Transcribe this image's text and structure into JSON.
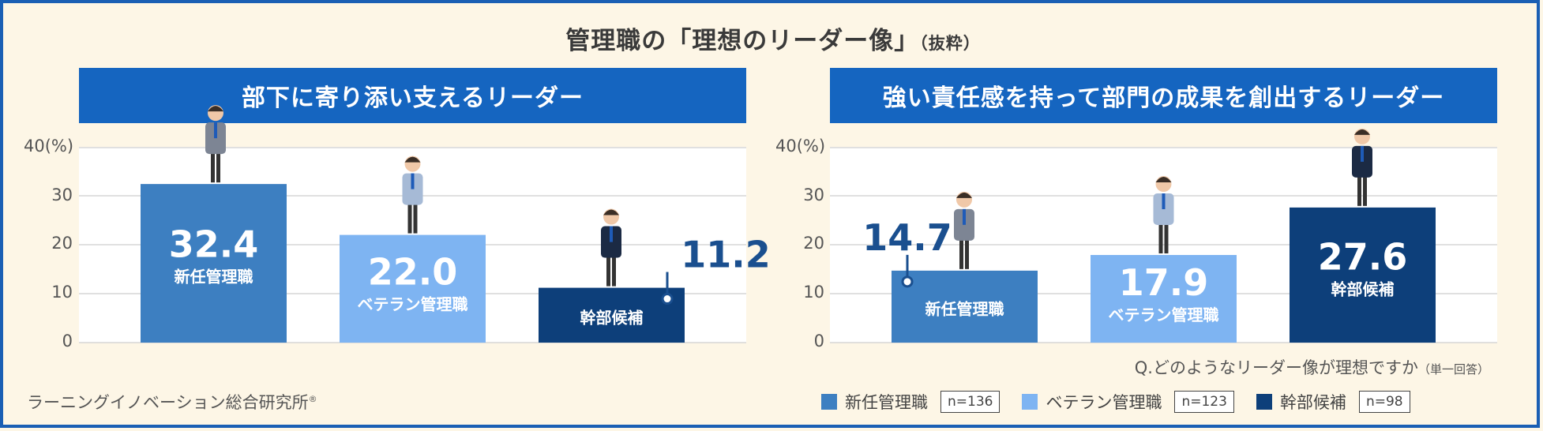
{
  "title": "管理職の「理想のリーダー像」",
  "title_suffix": "（抜粋）",
  "source": "ラーニングイノベーション総合研究所",
  "source_mark": "®",
  "question": "Q.どのようなリーダー像が理想ですか",
  "question_note": "（単一回答）",
  "y_unit": "40(%)",
  "y_ticks": [
    "30",
    "20",
    "10",
    "0"
  ],
  "legend": [
    {
      "label": "新任管理職",
      "n": "n=136",
      "color": "#3d7fc1"
    },
    {
      "label": "ベテラン管理職",
      "n": "n=123",
      "color": "#7eb4f2"
    },
    {
      "label": "幹部候補",
      "n": "n=98",
      "color": "#0d3f7a"
    }
  ],
  "chart_data": [
    {
      "type": "bar",
      "title": "部下に寄り添い支えるリーダー",
      "categories": [
        "新任管理職",
        "ベテラン管理職",
        "幹部候補"
      ],
      "values": [
        32.4,
        22.0,
        11.2
      ],
      "value_labels": [
        "32.4",
        "22.0",
        "11.2"
      ],
      "ylim": [
        0,
        40
      ],
      "yticks": [
        0,
        10,
        20,
        30,
        40
      ],
      "grid": true
    },
    {
      "type": "bar",
      "title": "強い責任感を持って部門の成果を創出するリーダー",
      "categories": [
        "新任管理職",
        "ベテラン管理職",
        "幹部候補"
      ],
      "values": [
        14.7,
        17.9,
        27.6
      ],
      "value_labels": [
        "14.7",
        "17.9",
        "27.6"
      ],
      "ylim": [
        0,
        40
      ],
      "yticks": [
        0,
        10,
        20,
        30,
        40
      ],
      "grid": true
    }
  ]
}
